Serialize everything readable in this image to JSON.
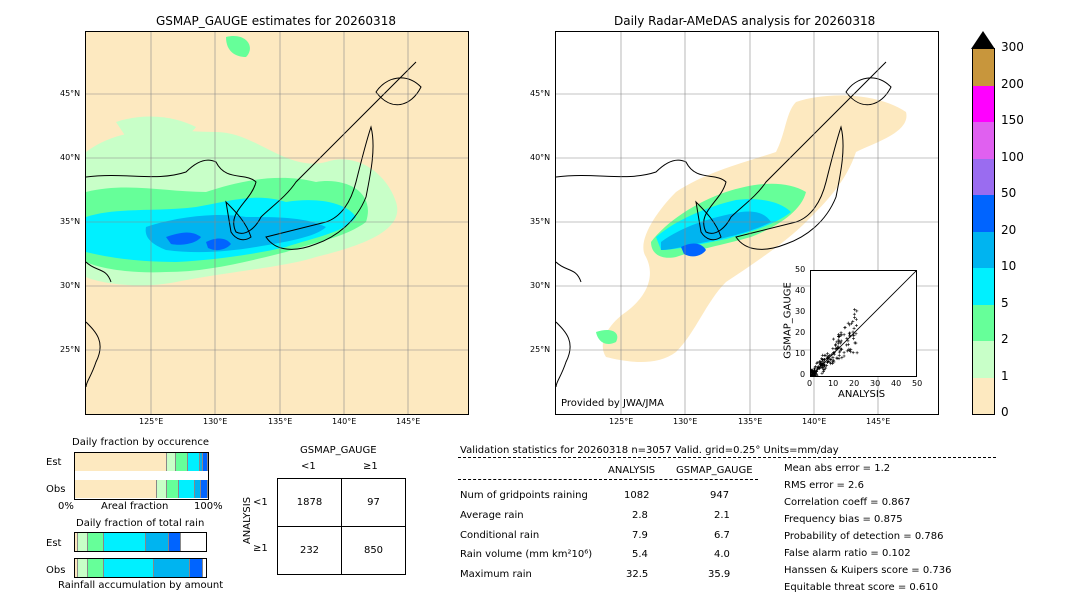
{
  "left_map": {
    "title": "GSMAP_GAUGE estimates for 20260318",
    "lat_labels": [
      "45°N",
      "40°N",
      "35°N",
      "30°N",
      "25°N"
    ],
    "lon_labels": [
      "125°E",
      "130°E",
      "135°E",
      "140°E",
      "145°E"
    ]
  },
  "right_map": {
    "title": "Daily Radar-AMeDAS analysis for 20260318",
    "lat_labels": [
      "45°N",
      "40°N",
      "35°N",
      "30°N",
      "25°N"
    ],
    "lon_labels": [
      "125°E",
      "130°E",
      "135°E",
      "140°E",
      "145°E"
    ],
    "credit": "Provided by JWA/JMA"
  },
  "colorbar": {
    "ticks": [
      "300",
      "200",
      "150",
      "100",
      "50",
      "20",
      "10",
      "5",
      "2",
      "1",
      "0"
    ],
    "colors": [
      "#c8963c",
      "#ff00ff",
      "#e060f0",
      "#9a6cf0",
      "#0064ff",
      "#00b4f0",
      "#00f0ff",
      "#66ff99",
      "#c8ffc8",
      "#fde9c0"
    ],
    "over_color": "#000000"
  },
  "chart_data": [
    {
      "type": "scatter",
      "xlabel": "ANALYSIS",
      "ylabel": "GSMAP_GAUGE",
      "xlim": [
        0,
        50
      ],
      "ylim": [
        0,
        50
      ],
      "x_ticks": [
        "0",
        "10",
        "20",
        "30",
        "40",
        "50"
      ],
      "y_ticks": [
        "0",
        "10",
        "20",
        "30",
        "40",
        "50"
      ]
    },
    {
      "type": "bar",
      "title": "Daily fraction by occurence",
      "categories": [
        "Est",
        "Obs"
      ],
      "xlabel": "Areal fraction",
      "axis_left": "0%",
      "axis_right": "100%",
      "series": [
        {
          "values": [
            0.69,
            0.62
          ]
        },
        {
          "values": [
            0.07,
            0.07
          ]
        },
        {
          "values": [
            0.09,
            0.09
          ]
        },
        {
          "values": [
            0.09,
            0.12
          ]
        },
        {
          "values": [
            0.02,
            0.05
          ]
        },
        {
          "values": [
            0.04,
            0.05
          ]
        }
      ],
      "colors": [
        "#fde9c0",
        "#c8ffc8",
        "#66ff99",
        "#00f0ff",
        "#00b4f0",
        "#0064ff"
      ]
    },
    {
      "type": "bar",
      "title": "Daily fraction of total rain",
      "categories": [
        "Est",
        "Obs"
      ],
      "xlabel": "Rainfall accumulation by amount",
      "series": [
        {
          "values": [
            0.02,
            0.02
          ]
        },
        {
          "values": [
            0.08,
            0.08
          ]
        },
        {
          "values": [
            0.12,
            0.12
          ]
        },
        {
          "values": [
            0.32,
            0.38
          ]
        },
        {
          "values": [
            0.18,
            0.28
          ]
        },
        {
          "values": [
            0.09,
            0.1
          ]
        }
      ],
      "colors": [
        "#fde9c0",
        "#c8ffc8",
        "#66ff99",
        "#00f0ff",
        "#00b4f0",
        "#0064ff"
      ]
    }
  ],
  "contingency": {
    "col_title": "GSMAP_GAUGE",
    "col_labels": [
      "<1",
      "≥1"
    ],
    "row_title": "ANALYSIS",
    "row_labels": [
      "<1",
      "≥1"
    ],
    "cells": [
      [
        "1878",
        "97"
      ],
      [
        "232",
        "850"
      ]
    ]
  },
  "validation": {
    "header": "Validation statistics for 20260318  n=3057 Valid. grid=0.25° Units=mm/day",
    "col_analysis": "ANALYSIS",
    "col_gsmap": "GSMAP_GAUGE",
    "rows": [
      {
        "label": "Num of gridpoints raining",
        "analysis": "1082",
        "gsmap": "947"
      },
      {
        "label": "Average rain",
        "analysis": "2.8",
        "gsmap": "2.1"
      },
      {
        "label": "Conditional rain",
        "analysis": "7.9",
        "gsmap": "6.7"
      },
      {
        "label": "Rain volume (mm km²10⁶)",
        "analysis": "5.4",
        "gsmap": "4.0"
      },
      {
        "label": "Maximum rain",
        "analysis": "32.5",
        "gsmap": "35.9"
      }
    ],
    "scores": [
      "Mean abs error =    1.2",
      "RMS error =    2.6",
      "Correlation coeff =  0.867",
      "Frequency bias =  0.875",
      "Probability of detection =  0.786",
      "False alarm ratio =  0.102",
      "Hanssen & Kuipers score =  0.736",
      "Equitable threat score =  0.610"
    ]
  }
}
